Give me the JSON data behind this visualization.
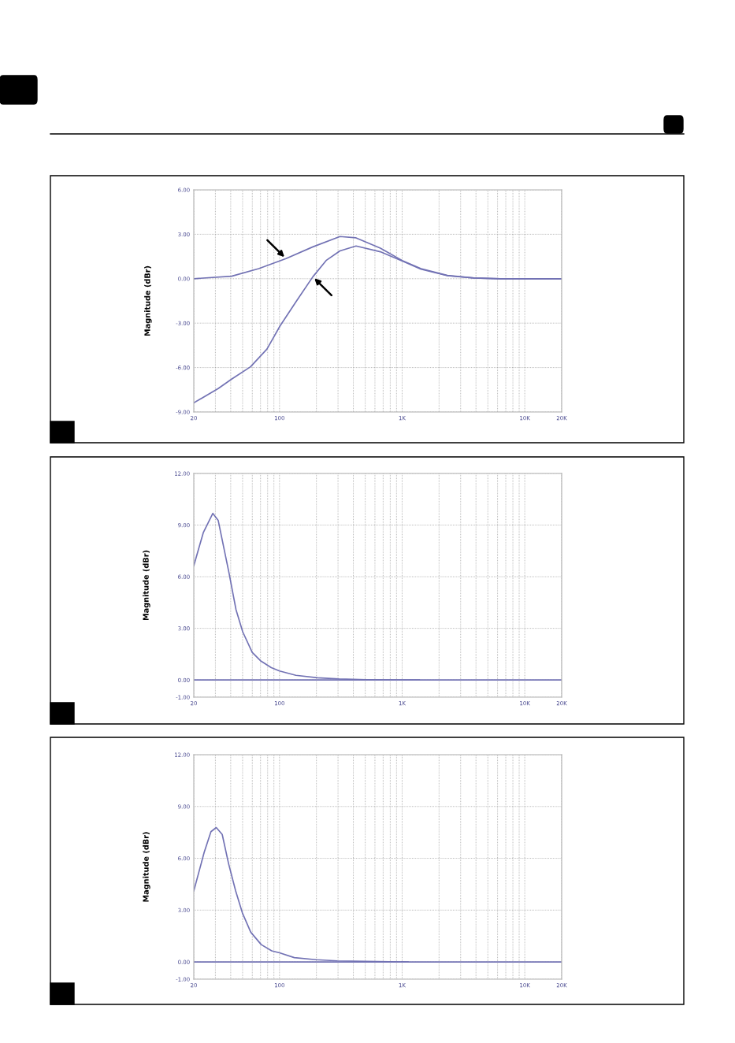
{
  "chart_data": [
    {
      "type": "line",
      "ylabel": "Magnitude (dBr)",
      "log": "x",
      "grid": true,
      "xlim": [
        20,
        20000
      ],
      "xticks": [
        20,
        100,
        {
          "value": 1000,
          "label": "1K"
        },
        {
          "value": 10000,
          "label": "10K"
        },
        {
          "value": 20000,
          "label": "20K"
        }
      ],
      "ylim": [
        -9,
        6
      ],
      "yticks": [
        {
          "value": -9,
          "label": "-9.00"
        },
        {
          "value": -6,
          "label": "-6.00"
        },
        {
          "value": -3,
          "label": "-3.00"
        },
        {
          "value": 0,
          "label": "0.00"
        },
        {
          "value": 3,
          "label": "3.00"
        },
        {
          "value": 6,
          "label": "6.00"
        }
      ],
      "series": [
        {
          "color": "#7272b4",
          "x": [
            20,
            40.7,
            67.7,
            113,
            187,
            311,
            421,
            664,
            1000,
            1425,
            2340,
            3850,
            6330,
            20000
          ],
          "values": [
            0,
            0.17,
            0.68,
            1.36,
            2.15,
            2.85,
            2.76,
            2.06,
            1.23,
            0.68,
            0.22,
            0.05,
            0,
            0
          ]
        },
        {
          "color": "#7272b4",
          "x": [
            20,
            31.6,
            40.7,
            58,
            79,
            101,
            137,
            187,
            240,
            311,
            421,
            664,
            1000,
            1425,
            2340,
            3850,
            6330,
            20000
          ],
          "values": [
            -8.38,
            -7.42,
            -6.78,
            -5.95,
            -4.75,
            -3.19,
            -1.53,
            0.13,
            1.23,
            1.88,
            2.21,
            1.82,
            1.2,
            0.64,
            0.2,
            0.05,
            0,
            0
          ]
        }
      ]
    },
    {
      "type": "line",
      "ylabel": "Magnitude (dBr)",
      "log": "x",
      "grid": true,
      "xlim": [
        20,
        20000
      ],
      "xticks": [
        20,
        100,
        {
          "value": 1000,
          "label": "1K"
        },
        {
          "value": 10000,
          "label": "10K"
        },
        {
          "value": 20000,
          "label": "20K"
        }
      ],
      "ylim": [
        -1,
        12
      ],
      "yticks": [
        {
          "value": -1,
          "label": "-1.00"
        },
        {
          "value": 0,
          "label": "0.00"
        },
        {
          "value": 3,
          "label": "3.00"
        },
        {
          "value": 6,
          "label": "6.00"
        },
        {
          "value": 9,
          "label": "9.00"
        },
        {
          "value": 12,
          "label": "12.00"
        }
      ],
      "series": [
        {
          "color": "#7272b4",
          "x": [
            20,
            20000
          ],
          "values": [
            0,
            0
          ]
        },
        {
          "color": "#7272b4",
          "x": [
            20,
            23.9,
            28.6,
            31.6,
            38.9,
            44.2,
            50.1,
            59.9,
            69.9,
            85.7,
            100,
            136,
            204,
            306,
            510,
            1380
          ],
          "values": [
            6.64,
            8.56,
            9.68,
            9.28,
            6.16,
            4.08,
            2.8,
            1.6,
            1.12,
            0.72,
            0.52,
            0.27,
            0.13,
            0.06,
            0.02,
            0
          ]
        }
      ]
    },
    {
      "type": "line",
      "ylabel": "Magnitude (dBr)",
      "log": "x",
      "grid": true,
      "xlim": [
        20,
        20000
      ],
      "xticks": [
        20,
        100,
        {
          "value": 1000,
          "label": "1K"
        },
        {
          "value": 10000,
          "label": "10K"
        },
        {
          "value": 20000,
          "label": "20K"
        }
      ],
      "ylim": [
        -1,
        12
      ],
      "yticks": [
        {
          "value": -1,
          "label": "-1.00"
        },
        {
          "value": 0,
          "label": "0.00"
        },
        {
          "value": 3,
          "label": "3.00"
        },
        {
          "value": 6,
          "label": "6.00"
        },
        {
          "value": 9,
          "label": "9.00"
        },
        {
          "value": 12,
          "label": "12.00"
        }
      ],
      "series": [
        {
          "color": "#7272b4",
          "x": [
            20,
            20000
          ],
          "values": [
            0,
            0
          ]
        },
        {
          "color": "#7272b4",
          "x": [
            20,
            24.3,
            27.6,
            30.5,
            34.1,
            38.4,
            43.9,
            49.8,
            58.3,
            71,
            86.3,
            100,
            132,
            198,
            297,
            495,
            1120
          ],
          "values": [
            4.11,
            6.34,
            7.54,
            7.78,
            7.38,
            5.7,
            4.11,
            2.84,
            1.72,
            1.0,
            0.64,
            0.53,
            0.25,
            0.13,
            0.06,
            0.03,
            0
          ]
        }
      ]
    }
  ]
}
